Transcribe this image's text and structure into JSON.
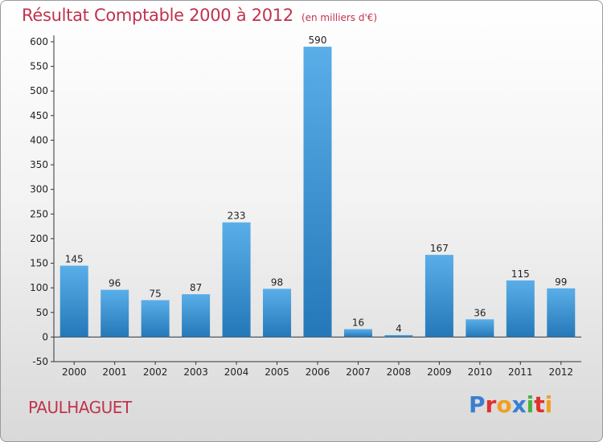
{
  "header": {
    "title": "Résultat Comptable 2000 à 2012",
    "unit": "(en milliers d'€)"
  },
  "footer": {
    "commune": "PAULHAGUET",
    "logo_text": "Proxiti",
    "logo_colors": [
      "#3a7fd0",
      "#e0302e",
      "#f0a020",
      "#3a7fd0",
      "#48b040",
      "#e0302e",
      "#f0a020"
    ]
  },
  "colors": {
    "bar_top": "#5aaee8",
    "bar_bottom": "#2478b8",
    "title": "#c0334e"
  },
  "chart_data": {
    "type": "bar",
    "title": "Résultat Comptable 2000 à 2012",
    "xlabel": "",
    "ylabel": "",
    "categories": [
      "2000",
      "2001",
      "2002",
      "2003",
      "2004",
      "2005",
      "2006",
      "2007",
      "2008",
      "2009",
      "2010",
      "2011",
      "2012"
    ],
    "values": [
      145,
      96,
      75,
      87,
      233,
      98,
      590,
      16,
      4,
      167,
      36,
      115,
      99
    ],
    "ylim": [
      -50,
      600
    ],
    "yticks": [
      -50,
      0,
      50,
      100,
      150,
      200,
      250,
      300,
      350,
      400,
      450,
      500,
      550,
      600
    ],
    "grid": false,
    "legend": "none"
  }
}
